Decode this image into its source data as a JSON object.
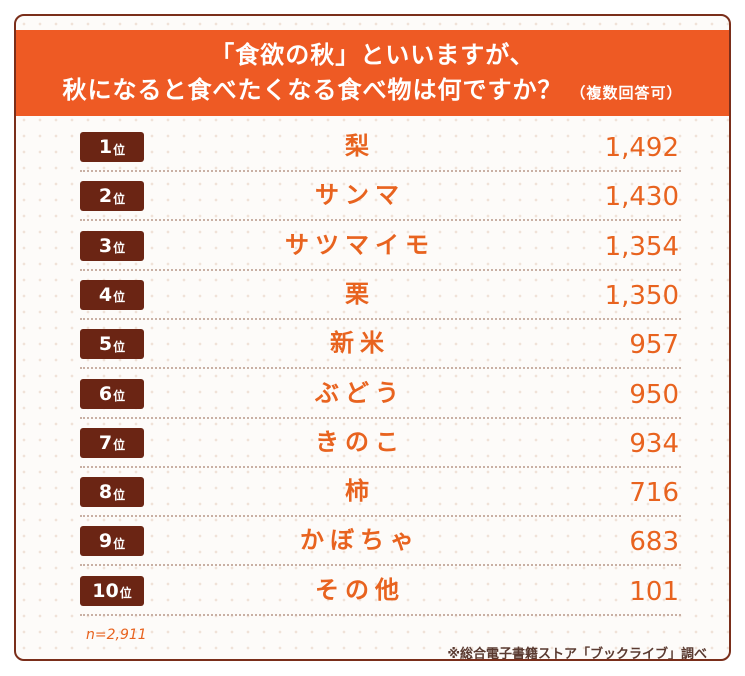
{
  "header": {
    "line1": "「食欲の秋」といいますが、",
    "line2": "秋になると食べたくなる食べ物は何ですか？",
    "note": "（複数回答可）"
  },
  "rank_suffix": "位",
  "chart_data": {
    "type": "table",
    "ranks": [
      "1",
      "2",
      "3",
      "4",
      "5",
      "6",
      "7",
      "8",
      "9",
      "10"
    ],
    "categories": [
      "梨",
      "サンマ",
      "サツマイモ",
      "栗",
      "新米",
      "ぶどう",
      "きのこ",
      "柿",
      "かぼちゃ",
      "その他"
    ],
    "values": [
      1492,
      1430,
      1354,
      1350,
      957,
      950,
      934,
      716,
      683,
      101
    ],
    "value_labels": [
      "1,492",
      "1,430",
      "1,354",
      "1,350",
      "957",
      "950",
      "934",
      "716",
      "683",
      "101"
    ]
  },
  "footnote_n": "n=2,911",
  "source": "※総合電子書籍ストア「ブックライブ」調べ",
  "colors": {
    "header_bg": "#ee5a24",
    "badge_bg": "#6b2514",
    "accent_text": "#e8631f",
    "border": "#7a2e1a"
  }
}
